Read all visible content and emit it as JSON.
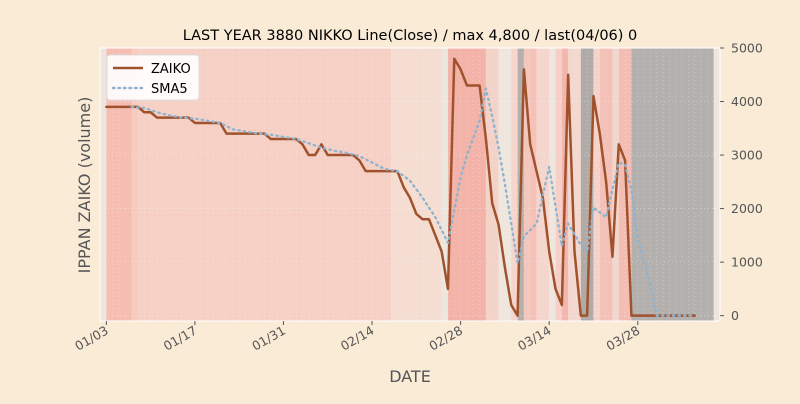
{
  "chart_data": {
    "type": "line",
    "title": "LAST YEAR 3880 NIKKO Line(Close) / max 4,800 / last(04/06) 0",
    "xlabel": "DATE",
    "ylabel": "IPPAN ZAIKO (volume)",
    "ylim": [
      -100,
      5000
    ],
    "y_ticks": [
      0,
      1000,
      2000,
      3000,
      4000,
      5000
    ],
    "y_axis_side": "right",
    "x_range": [
      "2023-01-02",
      "2023-04-10"
    ],
    "x_ticks": [
      {
        "date": "2023-01-03",
        "label": "01/03"
      },
      {
        "date": "2023-01-17",
        "label": "01/17"
      },
      {
        "date": "2023-01-31",
        "label": "01/31"
      },
      {
        "date": "2023-02-14",
        "label": "02/14"
      },
      {
        "date": "2023-02-28",
        "label": "02/28"
      },
      {
        "date": "2023-03-14",
        "label": "03/14"
      },
      {
        "date": "2023-03-28",
        "label": "03/28"
      }
    ],
    "grid": true,
    "legend": {
      "placement": "top-left"
    },
    "series": [
      {
        "name": "ZAIKO",
        "style": "solid",
        "color": "#A0522D",
        "points": [
          [
            "2023-01-03",
            3900
          ],
          [
            "2023-01-04",
            3900
          ],
          [
            "2023-01-05",
            3900
          ],
          [
            "2023-01-06",
            3900
          ],
          [
            "2023-01-07",
            3900
          ],
          [
            "2023-01-08",
            3900
          ],
          [
            "2023-01-09",
            3800
          ],
          [
            "2023-01-10",
            3800
          ],
          [
            "2023-01-11",
            3700
          ],
          [
            "2023-01-12",
            3700
          ],
          [
            "2023-01-13",
            3700
          ],
          [
            "2023-01-14",
            3700
          ],
          [
            "2023-01-15",
            3700
          ],
          [
            "2023-01-16",
            3700
          ],
          [
            "2023-01-17",
            3600
          ],
          [
            "2023-01-18",
            3600
          ],
          [
            "2023-01-19",
            3600
          ],
          [
            "2023-01-20",
            3600
          ],
          [
            "2023-01-21",
            3600
          ],
          [
            "2023-01-22",
            3400
          ],
          [
            "2023-01-23",
            3400
          ],
          [
            "2023-01-24",
            3400
          ],
          [
            "2023-01-25",
            3400
          ],
          [
            "2023-01-26",
            3400
          ],
          [
            "2023-01-27",
            3400
          ],
          [
            "2023-01-28",
            3400
          ],
          [
            "2023-01-29",
            3300
          ],
          [
            "2023-01-30",
            3300
          ],
          [
            "2023-01-31",
            3300
          ],
          [
            "2023-02-01",
            3300
          ],
          [
            "2023-02-02",
            3300
          ],
          [
            "2023-02-03",
            3200
          ],
          [
            "2023-02-04",
            3000
          ],
          [
            "2023-02-05",
            3000
          ],
          [
            "2023-02-06",
            3200
          ],
          [
            "2023-02-07",
            3000
          ],
          [
            "2023-02-08",
            3000
          ],
          [
            "2023-02-09",
            3000
          ],
          [
            "2023-02-10",
            3000
          ],
          [
            "2023-02-11",
            3000
          ],
          [
            "2023-02-12",
            2900
          ],
          [
            "2023-02-13",
            2700
          ],
          [
            "2023-02-14",
            2700
          ],
          [
            "2023-02-15",
            2700
          ],
          [
            "2023-02-16",
            2700
          ],
          [
            "2023-02-17",
            2700
          ],
          [
            "2023-02-18",
            2700
          ],
          [
            "2023-02-19",
            2400
          ],
          [
            "2023-02-20",
            2200
          ],
          [
            "2023-02-21",
            1900
          ],
          [
            "2023-02-22",
            1800
          ],
          [
            "2023-02-23",
            1800
          ],
          [
            "2023-02-24",
            1500
          ],
          [
            "2023-02-25",
            1200
          ],
          [
            "2023-02-26",
            500
          ],
          [
            "2023-02-27",
            4800
          ],
          [
            "2023-02-28",
            4600
          ],
          [
            "2023-03-01",
            4300
          ],
          [
            "2023-03-02",
            4300
          ],
          [
            "2023-03-03",
            4300
          ],
          [
            "2023-03-04",
            3300
          ],
          [
            "2023-03-05",
            2100
          ],
          [
            "2023-03-06",
            1700
          ],
          [
            "2023-03-07",
            900
          ],
          [
            "2023-03-08",
            200
          ],
          [
            "2023-03-09",
            0
          ],
          [
            "2023-03-10",
            4600
          ],
          [
            "2023-03-11",
            3200
          ],
          [
            "2023-03-12",
            2700
          ],
          [
            "2023-03-13",
            2200
          ],
          [
            "2023-03-14",
            1200
          ],
          [
            "2023-03-15",
            500
          ],
          [
            "2023-03-16",
            200
          ],
          [
            "2023-03-17",
            4500
          ],
          [
            "2023-03-18",
            1200
          ],
          [
            "2023-03-19",
            0
          ],
          [
            "2023-03-20",
            0
          ],
          [
            "2023-03-21",
            4100
          ],
          [
            "2023-03-22",
            3400
          ],
          [
            "2023-03-23",
            2500
          ],
          [
            "2023-03-24",
            1100
          ],
          [
            "2023-03-25",
            3200
          ],
          [
            "2023-03-26",
            2900
          ],
          [
            "2023-03-27",
            0
          ],
          [
            "2023-03-28",
            0
          ],
          [
            "2023-03-29",
            0
          ],
          [
            "2023-03-30",
            0
          ],
          [
            "2023-03-31",
            0
          ],
          [
            "2023-04-01",
            0
          ],
          [
            "2023-04-02",
            0
          ],
          [
            "2023-04-03",
            0
          ],
          [
            "2023-04-04",
            0
          ],
          [
            "2023-04-05",
            0
          ],
          [
            "2023-04-06",
            0
          ]
        ]
      },
      {
        "name": "SMA5",
        "style": "dotted",
        "color": "#8FB3CF",
        "points": [
          [
            "2023-01-07",
            3900
          ],
          [
            "2023-01-09",
            3880
          ],
          [
            "2023-01-11",
            3800
          ],
          [
            "2023-01-13",
            3740
          ],
          [
            "2023-01-15",
            3700
          ],
          [
            "2023-01-17",
            3680
          ],
          [
            "2023-01-19",
            3640
          ],
          [
            "2023-01-21",
            3600
          ],
          [
            "2023-01-23",
            3480
          ],
          [
            "2023-01-25",
            3440
          ],
          [
            "2023-01-27",
            3400
          ],
          [
            "2023-01-29",
            3380
          ],
          [
            "2023-01-31",
            3340
          ],
          [
            "2023-02-02",
            3300
          ],
          [
            "2023-02-04",
            3220
          ],
          [
            "2023-02-06",
            3140
          ],
          [
            "2023-02-08",
            3080
          ],
          [
            "2023-02-10",
            3040
          ],
          [
            "2023-02-12",
            2980
          ],
          [
            "2023-02-14",
            2860
          ],
          [
            "2023-02-16",
            2740
          ],
          [
            "2023-02-18",
            2700
          ],
          [
            "2023-02-20",
            2520
          ],
          [
            "2023-02-22",
            2200
          ],
          [
            "2023-02-24",
            1840
          ],
          [
            "2023-02-26",
            1360
          ],
          [
            "2023-02-28",
            2580
          ],
          [
            "2023-03-01",
            3000
          ],
          [
            "2023-03-03",
            3640
          ],
          [
            "2023-03-04",
            4240
          ],
          [
            "2023-03-05",
            3720
          ],
          [
            "2023-03-06",
            3140
          ],
          [
            "2023-03-07",
            2460
          ],
          [
            "2023-03-09",
            980
          ],
          [
            "2023-03-10",
            1480
          ],
          [
            "2023-03-12",
            1720
          ],
          [
            "2023-03-14",
            2780
          ],
          [
            "2023-03-16",
            1300
          ],
          [
            "2023-03-17",
            1720
          ],
          [
            "2023-03-19",
            1320
          ],
          [
            "2023-03-20",
            1180
          ],
          [
            "2023-03-21",
            2020
          ],
          [
            "2023-03-23",
            1840
          ],
          [
            "2023-03-25",
            2860
          ],
          [
            "2023-03-26",
            2820
          ],
          [
            "2023-03-27",
            2340
          ],
          [
            "2023-03-28",
            1440
          ],
          [
            "2023-03-30",
            580
          ],
          [
            "2023-03-31",
            0
          ],
          [
            "2023-04-06",
            0
          ]
        ]
      }
    ],
    "background_bands": [
      [
        "2023-01-02",
        "2023-01-03",
        "#EDE6DE"
      ],
      [
        "2023-01-03",
        "2023-01-07",
        "#F6BDB2"
      ],
      [
        "2023-01-07",
        "2023-01-08",
        "#F7CBC0"
      ],
      [
        "2023-01-08",
        "2023-02-17",
        "#F6D0C5"
      ],
      [
        "2023-02-17",
        "2023-02-25",
        "#F5DDD2"
      ],
      [
        "2023-02-25",
        "2023-02-26",
        "#EDE6DE"
      ],
      [
        "2023-02-26",
        "2023-03-04",
        "#F4B3A8"
      ],
      [
        "2023-03-04",
        "2023-03-06",
        "#F3D2C8"
      ],
      [
        "2023-03-06",
        "2023-03-08",
        "#EFE6DE"
      ],
      [
        "2023-03-08",
        "2023-03-09",
        "#F6D5CC"
      ],
      [
        "2023-03-09",
        "2023-03-10",
        "#B6B0AC"
      ],
      [
        "2023-03-10",
        "2023-03-11",
        "#F1C7BE"
      ],
      [
        "2023-03-11",
        "2023-03-12",
        "#F6C2B8"
      ],
      [
        "2023-03-12",
        "2023-03-14",
        "#F5D6CE"
      ],
      [
        "2023-03-14",
        "2023-03-15",
        "#EFE6DE"
      ],
      [
        "2023-03-15",
        "2023-03-16",
        "#F6D0C8"
      ],
      [
        "2023-03-16",
        "2023-03-17",
        "#F3B6AC"
      ],
      [
        "2023-03-17",
        "2023-03-19",
        "#F3D8CF"
      ],
      [
        "2023-03-19",
        "2023-03-21",
        "#B1ABA8"
      ],
      [
        "2023-03-21",
        "2023-03-22",
        "#F5D3CA"
      ],
      [
        "2023-03-22",
        "2023-03-24",
        "#F3C1B7"
      ],
      [
        "2023-03-24",
        "2023-03-25",
        "#F2D7CE"
      ],
      [
        "2023-03-25",
        "2023-03-27",
        "#F3BDB3"
      ],
      [
        "2023-03-27",
        "2023-04-09",
        "#B3B0AE"
      ],
      [
        "2023-04-09",
        "2023-04-10",
        "#EDE6DE"
      ]
    ]
  }
}
